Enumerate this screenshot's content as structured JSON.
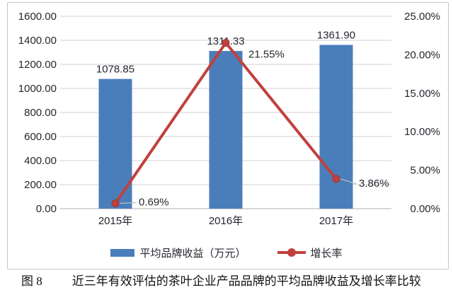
{
  "chart_data": {
    "type": "combo-bar-line",
    "categories": [
      "2015年",
      "2016年",
      "2017年"
    ],
    "series": [
      {
        "name": "平均品牌收益（万元）",
        "type": "bar",
        "axis": "left",
        "values": [
          1078.85,
          1311.33,
          1361.9
        ],
        "data_labels": [
          "1078.85",
          "1311.33",
          "1361.90"
        ],
        "color": "#4A7EBB"
      },
      {
        "name": "增长率",
        "type": "line",
        "axis": "right",
        "values": [
          0.69,
          21.55,
          3.86
        ],
        "data_labels": [
          "0.69%",
          "21.55%",
          "3.86%"
        ],
        "color": "#C1403D"
      }
    ],
    "left_axis": {
      "min": 0,
      "max": 1600,
      "step": 200,
      "tick_labels": [
        "0.00",
        "200.00",
        "400.00",
        "600.00",
        "800.00",
        "1000.00",
        "1200.00",
        "1400.00",
        "1600.00"
      ]
    },
    "right_axis": {
      "min": 0,
      "max": 25,
      "step": 5,
      "tick_labels": [
        "0.00%",
        "5.00%",
        "10.00%",
        "15.00%",
        "20.00%",
        "25.00%"
      ]
    },
    "grid": true,
    "legend_position": "bottom"
  },
  "caption": {
    "figure_label": "图 8",
    "title": "近三年有效评估的茶叶企业产品品牌的平均品牌收益及增长率比较"
  },
  "colors": {
    "bar": "#4A7EBB",
    "line": "#C1403D",
    "marker_edge": "#9E3532",
    "gridline": "#D9D9D9",
    "axis_line": "#BFBFBF",
    "leader": "#BFBFBF",
    "text": "#24272E",
    "frame_border": "#C6C6C6"
  }
}
